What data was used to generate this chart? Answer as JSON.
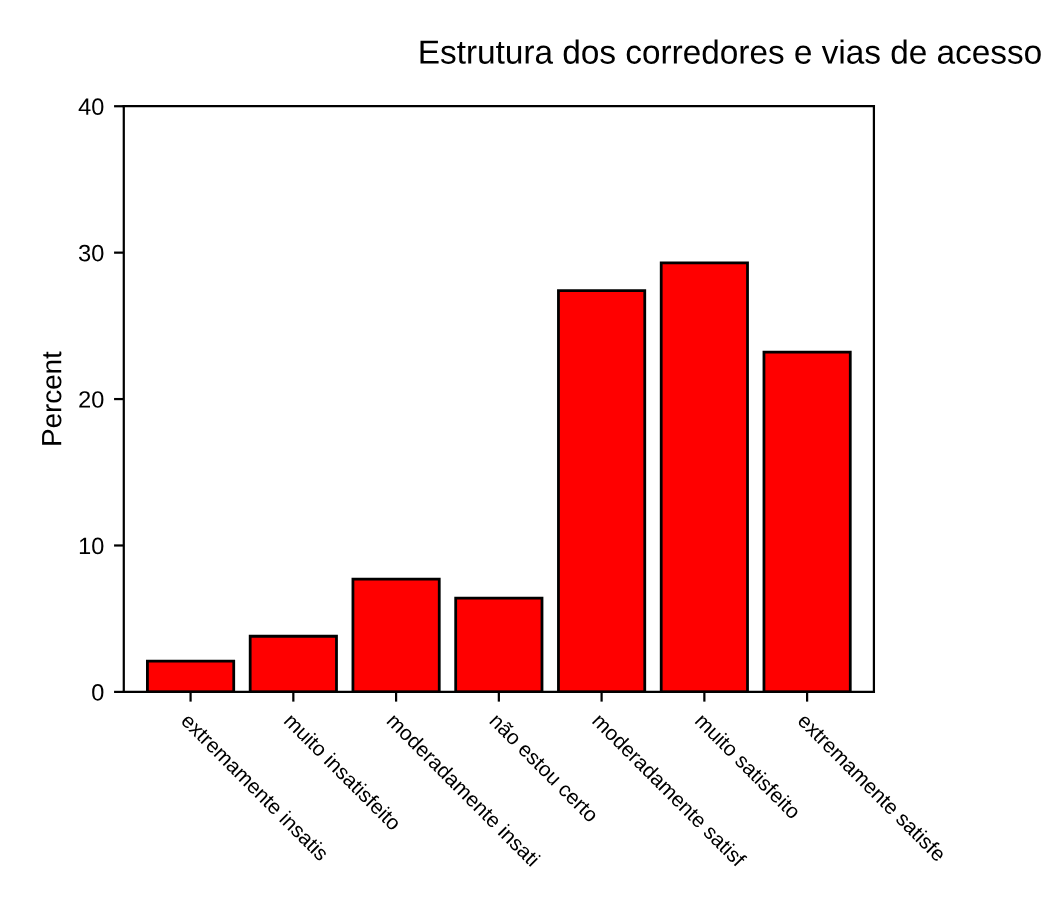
{
  "chart_data": {
    "type": "bar",
    "title": "Estrutura dos corredores e vias de acesso",
    "ylabel": "Percent",
    "categories": [
      "extremamente insatis",
      "muito insatisfeito",
      "moderadamente insati",
      "não estou certo",
      "moderadamente satisf",
      "muito satisfeito",
      "extremamente satisfe"
    ],
    "values": [
      2.1,
      3.8,
      7.7,
      6.4,
      27.4,
      29.3,
      23.2
    ],
    "color": "#ff0000",
    "ylim": [
      0,
      40
    ],
    "yticks": [
      0,
      10,
      20,
      30,
      40
    ],
    "grid": false,
    "legend": false
  }
}
